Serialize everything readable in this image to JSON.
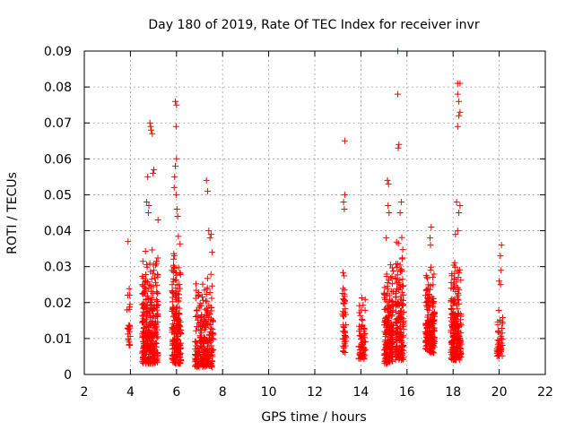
{
  "chart_data": {
    "type": "scatter",
    "title": "Day 180 of 2019, Rate Of TEC Index for receiver invr",
    "xlabel": "GPS time / hours",
    "ylabel": "ROTI / TECUs",
    "xlim": [
      2,
      22
    ],
    "ylim": [
      0,
      0.09
    ],
    "x_ticks": [
      "2",
      "4",
      "6",
      "8",
      "10",
      "12",
      "14",
      "16",
      "18",
      "20",
      "22"
    ],
    "y_ticks": [
      "0",
      "0.01",
      "0.02",
      "0.03",
      "0.04",
      "0.05",
      "0.06",
      "0.07",
      "0.08",
      "0.09"
    ],
    "grid": true,
    "marker": "+",
    "color": "#ff0000",
    "series": [
      {
        "name": "ROTI",
        "clusters": [
          {
            "x_range": [
              3.85,
              4.0
            ],
            "y_min": 0.008,
            "y_max": 0.031,
            "count": 22,
            "outliers": [
              [
                3.9,
                0.037
              ],
              [
                3.95,
                0.009
              ]
            ]
          },
          {
            "x_range": [
              4.5,
              5.2
            ],
            "y_min": 0.003,
            "y_max": 0.038,
            "count": 320,
            "outliers": [
              [
                4.85,
                0.07
              ],
              [
                4.9,
                0.068
              ],
              [
                4.95,
                0.067
              ],
              [
                4.88,
                0.069
              ],
              [
                4.75,
                0.055
              ],
              [
                4.98,
                0.056
              ],
              [
                5.02,
                0.057
              ],
              [
                4.7,
                0.048
              ],
              [
                4.8,
                0.047
              ],
              [
                5.2,
                0.043
              ],
              [
                4.78,
                0.045
              ]
            ]
          },
          {
            "x_range": [
              5.8,
              6.2
            ],
            "y_min": 0.003,
            "y_max": 0.04,
            "count": 200,
            "outliers": [
              [
                5.95,
                0.076
              ],
              [
                6.0,
                0.075
              ],
              [
                5.98,
                0.069
              ],
              [
                6.0,
                0.06
              ],
              [
                5.95,
                0.058
              ],
              [
                5.92,
                0.055
              ],
              [
                5.98,
                0.05
              ],
              [
                6.02,
                0.046
              ],
              [
                5.9,
                0.052
              ],
              [
                6.05,
                0.044
              ]
            ]
          },
          {
            "x_range": [
              6.8,
              7.6
            ],
            "y_min": 0.002,
            "y_max": 0.029,
            "count": 240,
            "outliers": [
              [
                7.3,
                0.054
              ],
              [
                7.35,
                0.051
              ],
              [
                7.4,
                0.04
              ],
              [
                7.5,
                0.039
              ],
              [
                7.55,
                0.034
              ],
              [
                7.45,
                0.038
              ]
            ]
          },
          {
            "x_range": [
              13.2,
              13.35
            ],
            "y_min": 0.006,
            "y_max": 0.034,
            "count": 45,
            "outliers": [
              [
                13.3,
                0.065
              ],
              [
                13.3,
                0.05
              ],
              [
                13.25,
                0.048
              ],
              [
                13.28,
                0.046
              ]
            ]
          },
          {
            "x_range": [
              13.9,
              14.2
            ],
            "y_min": 0.004,
            "y_max": 0.022,
            "count": 70,
            "outliers": []
          },
          {
            "x_range": [
              15.0,
              15.4
            ],
            "y_min": 0.003,
            "y_max": 0.033,
            "count": 190,
            "outliers": [
              [
                15.15,
                0.054
              ],
              [
                15.2,
                0.053
              ],
              [
                15.18,
                0.047
              ],
              [
                15.22,
                0.045
              ],
              [
                15.1,
                0.038
              ]
            ]
          },
          {
            "x_range": [
              15.5,
              15.85
            ],
            "y_min": 0.004,
            "y_max": 0.042,
            "count": 160,
            "outliers": [
              [
                15.6,
                0.09
              ],
              [
                15.6,
                0.078
              ],
              [
                15.65,
                0.064
              ],
              [
                15.62,
                0.063
              ],
              [
                15.75,
                0.048
              ],
              [
                15.7,
                0.045
              ]
            ]
          },
          {
            "x_range": [
              16.8,
              17.2
            ],
            "y_min": 0.006,
            "y_max": 0.031,
            "count": 190,
            "outliers": [
              [
                17.05,
                0.041
              ],
              [
                17.0,
                0.038
              ],
              [
                17.02,
                0.036
              ]
            ]
          },
          {
            "x_range": [
              17.9,
              18.35
            ],
            "y_min": 0.004,
            "y_max": 0.032,
            "count": 220,
            "outliers": [
              [
                18.2,
                0.081
              ],
              [
                18.3,
                0.081
              ],
              [
                18.2,
                0.078
              ],
              [
                18.25,
                0.076
              ],
              [
                18.3,
                0.073
              ],
              [
                18.25,
                0.072
              ],
              [
                18.2,
                0.069
              ],
              [
                18.15,
                0.048
              ],
              [
                18.3,
                0.047
              ],
              [
                18.25,
                0.045
              ],
              [
                18.2,
                0.04
              ],
              [
                18.1,
                0.039
              ]
            ]
          },
          {
            "x_range": [
              19.9,
              20.15
            ],
            "y_min": 0.005,
            "y_max": 0.018,
            "count": 45,
            "outliers": [
              [
                20.1,
                0.036
              ],
              [
                20.05,
                0.033
              ],
              [
                20.08,
                0.029
              ],
              [
                20.0,
                0.026
              ],
              [
                20.06,
                0.025
              ]
            ]
          }
        ]
      }
    ]
  }
}
